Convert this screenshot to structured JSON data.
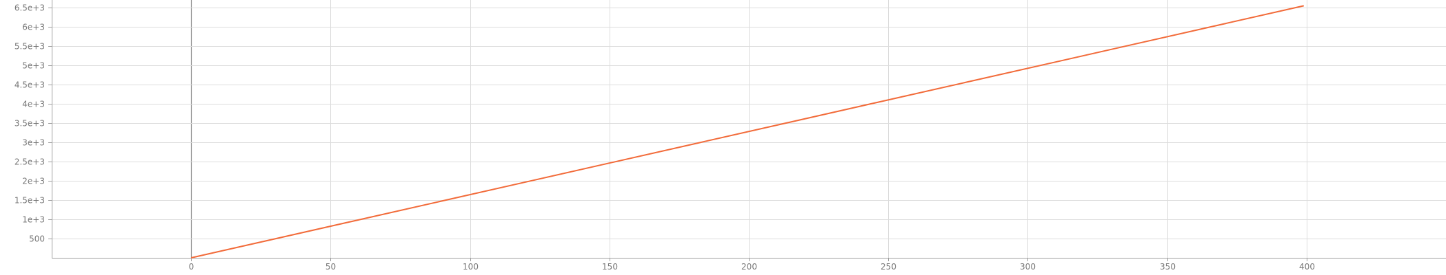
{
  "chart_data": {
    "type": "line",
    "title": "",
    "xlabel": "",
    "ylabel": "",
    "xlim": [
      -50,
      450
    ],
    "ylim": [
      0,
      6700
    ],
    "grid": true,
    "x_ticks": [
      0,
      50,
      100,
      150,
      200,
      250,
      300,
      350,
      400
    ],
    "x_tick_labels": [
      "0",
      "50",
      "100",
      "150",
      "200",
      "250",
      "300",
      "350",
      "400"
    ],
    "y_ticks": [
      500,
      1000,
      1500,
      2000,
      2500,
      3000,
      3500,
      4000,
      4500,
      5000,
      5500,
      6000,
      6500
    ],
    "y_tick_labels": [
      "500",
      "1e+3",
      "1.5e+3",
      "2e+3",
      "2.5e+3",
      "3e+3",
      "3.5e+3",
      "4e+3",
      "4.5e+3",
      "5e+3",
      "5.5e+3",
      "6e+3",
      "6.5e+3"
    ],
    "series": [
      {
        "color": "#f26b3a",
        "x": [
          0,
          399
        ],
        "y": [
          0,
          6550
        ]
      }
    ]
  }
}
